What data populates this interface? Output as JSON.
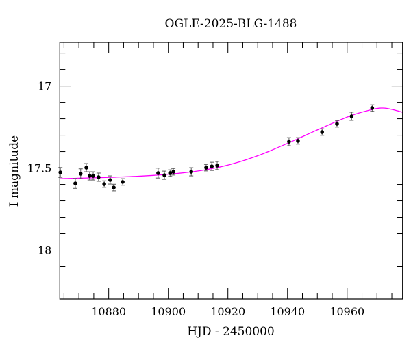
{
  "chart_data": {
    "type": "scatter",
    "title": "OGLE-2025-BLG-1488",
    "xlabel": "HJD - 2450000",
    "ylabel": "I magnitude",
    "xlim": [
      10863.6,
      10978.6
    ],
    "ylim": [
      18.298,
      16.735
    ],
    "y_inverted": true,
    "grid": false,
    "x_ticks": [
      10880,
      10900,
      10920,
      10940,
      10960
    ],
    "x_tick_labels": [
      "10880",
      "10900",
      "10920",
      "10940",
      "10960"
    ],
    "y_ticks": [
      17,
      17.5,
      18
    ],
    "y_tick_labels": [
      "17",
      "17.5",
      "18"
    ],
    "colors": {
      "data": "#000000",
      "model": "#ff00ff"
    },
    "series": [
      {
        "kind": "data-with-errorbars",
        "x": [
          10863.8,
          10868.8,
          10870.6,
          10872.5,
          10873.6,
          10874.8,
          10876.6,
          10878.5,
          10880.5,
          10881.7,
          10884.7,
          10896.6,
          10898.7,
          10900.6,
          10901.7,
          10907.7,
          10912.7,
          10914.6,
          10916.4,
          10940.5,
          10943.5,
          10951.6,
          10956.6,
          10961.5,
          10968.4
        ],
        "y": [
          17.527,
          17.594,
          17.535,
          17.498,
          17.548,
          17.548,
          17.556,
          17.598,
          17.573,
          17.619,
          17.585,
          17.531,
          17.544,
          17.531,
          17.523,
          17.523,
          17.498,
          17.49,
          17.485,
          17.34,
          17.335,
          17.281,
          17.231,
          17.185,
          17.135
        ],
        "yerr": [
          0.03,
          0.03,
          0.03,
          0.025,
          0.025,
          0.025,
          0.025,
          0.02,
          0.025,
          0.02,
          0.02,
          0.03,
          0.025,
          0.02,
          0.02,
          0.025,
          0.02,
          0.025,
          0.025,
          0.025,
          0.02,
          0.02,
          0.02,
          0.025,
          0.02
        ]
      },
      {
        "kind": "model-line",
        "x": [
          10863.6,
          10870,
          10880,
          10890,
          10900,
          10910,
          10920,
          10930,
          10940,
          10950,
          10960,
          10966,
          10972,
          10978.6
        ],
        "y": [
          17.565,
          17.562,
          17.557,
          17.55,
          17.538,
          17.518,
          17.482,
          17.425,
          17.35,
          17.268,
          17.19,
          17.155,
          17.135,
          17.16
        ]
      }
    ]
  }
}
